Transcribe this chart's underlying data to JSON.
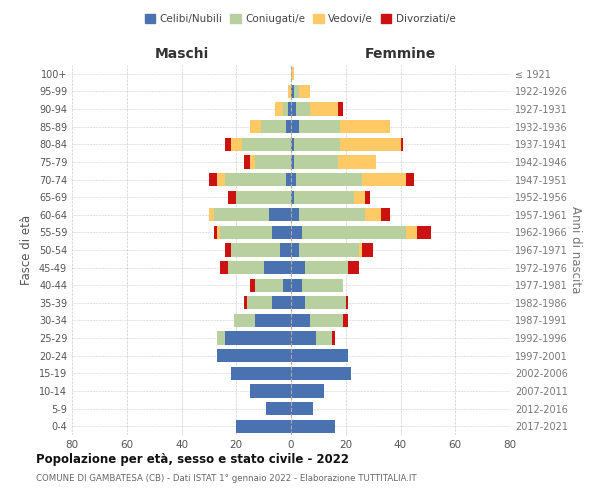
{
  "age_groups": [
    "0-4",
    "5-9",
    "10-14",
    "15-19",
    "20-24",
    "25-29",
    "30-34",
    "35-39",
    "40-44",
    "45-49",
    "50-54",
    "55-59",
    "60-64",
    "65-69",
    "70-74",
    "75-79",
    "80-84",
    "85-89",
    "90-94",
    "95-99",
    "100+"
  ],
  "birth_years": [
    "2017-2021",
    "2012-2016",
    "2007-2011",
    "2002-2006",
    "1997-2001",
    "1992-1996",
    "1987-1991",
    "1982-1986",
    "1977-1981",
    "1972-1976",
    "1967-1971",
    "1962-1966",
    "1957-1961",
    "1952-1956",
    "1947-1951",
    "1942-1946",
    "1937-1941",
    "1932-1936",
    "1927-1931",
    "1922-1926",
    "≤ 1921"
  ],
  "males": {
    "celibe": [
      20,
      9,
      15,
      22,
      27,
      24,
      13,
      7,
      3,
      10,
      4,
      7,
      8,
      0,
      2,
      0,
      0,
      2,
      1,
      0,
      0
    ],
    "coniugato": [
      0,
      0,
      0,
      0,
      0,
      3,
      8,
      9,
      10,
      13,
      18,
      19,
      20,
      20,
      22,
      13,
      18,
      9,
      2,
      0,
      0
    ],
    "vedovo": [
      0,
      0,
      0,
      0,
      0,
      0,
      0,
      0,
      0,
      0,
      0,
      1,
      2,
      0,
      3,
      2,
      4,
      4,
      3,
      1,
      0
    ],
    "divorziato": [
      0,
      0,
      0,
      0,
      0,
      0,
      0,
      1,
      2,
      3,
      2,
      1,
      0,
      3,
      3,
      2,
      2,
      0,
      0,
      0,
      0
    ]
  },
  "females": {
    "nubile": [
      16,
      8,
      12,
      22,
      21,
      9,
      7,
      5,
      4,
      5,
      3,
      4,
      3,
      1,
      2,
      1,
      1,
      3,
      2,
      1,
      0
    ],
    "coniugata": [
      0,
      0,
      0,
      0,
      0,
      6,
      12,
      15,
      15,
      16,
      22,
      38,
      24,
      22,
      24,
      16,
      17,
      15,
      5,
      2,
      0
    ],
    "vedova": [
      0,
      0,
      0,
      0,
      0,
      0,
      0,
      0,
      0,
      0,
      1,
      4,
      6,
      4,
      16,
      14,
      22,
      18,
      10,
      4,
      1
    ],
    "divorziata": [
      0,
      0,
      0,
      0,
      0,
      1,
      2,
      1,
      0,
      4,
      4,
      5,
      3,
      2,
      3,
      0,
      1,
      0,
      2,
      0,
      0
    ]
  },
  "colors": {
    "celibe_nubile": "#4a72b0",
    "coniugato_coniugata": "#b8cfa0",
    "vedovo_vedova": "#ffc966",
    "divorziato_divorziata": "#cc1111"
  },
  "xlim": 80,
  "title": "Popolazione per età, sesso e stato civile - 2022",
  "subtitle": "COMUNE DI GAMBATESA (CB) - Dati ISTAT 1° gennaio 2022 - Elaborazione TUTTITALIA.IT",
  "ylabel_left": "Fasce di età",
  "ylabel_right": "Anni di nascita",
  "xlabel_left": "Maschi",
  "xlabel_right": "Femmine",
  "legend_labels": [
    "Celibi/Nubili",
    "Coniugati/e",
    "Vedovi/e",
    "Divorziati/e"
  ],
  "background_color": "#ffffff",
  "grid_color": "#cccccc"
}
